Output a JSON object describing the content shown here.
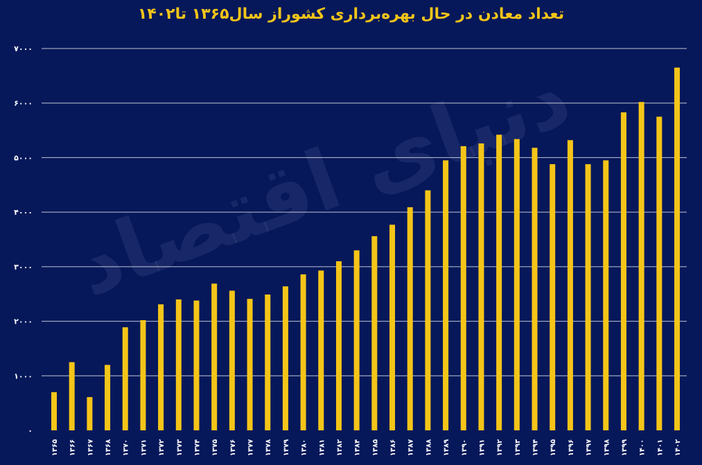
{
  "chart_data": {
    "type": "bar",
    "title": "تعداد معادن در حال بهره‌برداری کشوراز سال۱۳۶۵ تا۱۴۰۲",
    "xlabel": "",
    "ylabel": "",
    "ylim": [
      0,
      7000
    ],
    "grid": true,
    "yticks": [
      0,
      1000,
      2000,
      3000,
      4000,
      5000,
      6000,
      7000
    ],
    "ytick_labels": [
      "۰",
      "۱۰۰۰",
      "۲۰۰۰",
      "۳۰۰۰",
      "۴۰۰۰",
      "۵۰۰۰",
      "۶۰۰۰",
      "۷۰۰۰"
    ],
    "categories": [
      "۱۳۶۵",
      "۱۳۶۶",
      "۱۳۶۷",
      "۱۳۶۸",
      "۱۳۷۰",
      "۱۳۷۱",
      "۱۳۷۲",
      "۱۳۷۳",
      "۱۳۷۴",
      "۱۳۷۵",
      "۱۳۷۶",
      "۱۳۷۷",
      "۱۳۷۸",
      "۱۳۷۹",
      "۱۳۸۰",
      "۱۳۸۱",
      "۱۳۸۲",
      "۱۳۸۴",
      "۱۳۸۵",
      "۱۳۸۶",
      "۱۳۸۷",
      "۱۳۸۸",
      "۱۳۸۹",
      "۱۳۹۰",
      "۱۳۹۱",
      "۱۳۹۲",
      "۱۳۹۳",
      "۱۳۹۴",
      "۱۳۹۵",
      "۱۳۹۶",
      "۱۳۹۷",
      "۱۳۹۸",
      "۱۳۹۹",
      "۱۴۰۰",
      "۱۴۰۱",
      "۱۴۰۲"
    ],
    "values": [
      700,
      1250,
      610,
      1200,
      1890,
      2020,
      2310,
      2400,
      2380,
      2690,
      2560,
      2410,
      2490,
      2640,
      2860,
      2930,
      3100,
      3300,
      3560,
      3770,
      4090,
      4400,
      4950,
      5210,
      5260,
      5420,
      5340,
      5180,
      4880,
      5320,
      4880,
      4950,
      5830,
      6020,
      5750,
      6650
    ],
    "bar_color": "#f5c518",
    "background_color": "#06185a",
    "title_color": "#f5c518"
  },
  "watermark": "دنیای اقتصاد"
}
